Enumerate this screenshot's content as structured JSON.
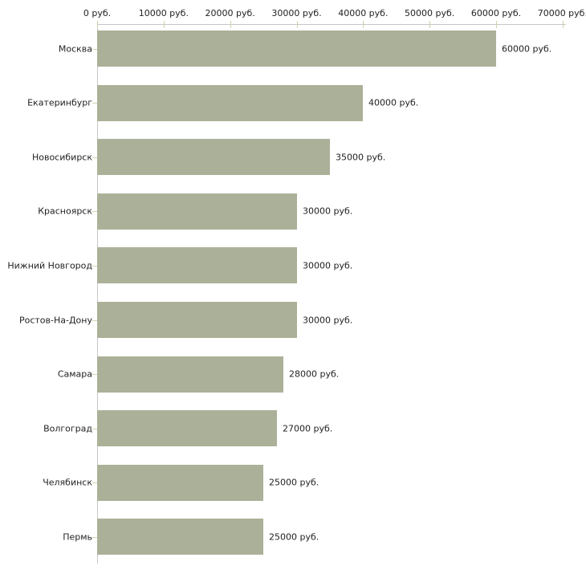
{
  "chart_data": {
    "type": "bar",
    "orientation": "horizontal",
    "categories": [
      "Москва",
      "Екатеринбург",
      "Новосибирск",
      "Красноярск",
      "Нижний Новгород",
      "Ростов-На-Дону",
      "Самара",
      "Волгоград",
      "Челябинск",
      "Пермь"
    ],
    "values": [
      60000,
      40000,
      35000,
      30000,
      30000,
      30000,
      28000,
      27000,
      25000,
      25000
    ],
    "value_labels": [
      "60000 руб.",
      "40000 руб.",
      "35000 руб.",
      "30000 руб.",
      "30000 руб.",
      "30000 руб.",
      "28000 руб.",
      "27000 руб.",
      "25000 руб.",
      "25000 руб."
    ],
    "x_axis": {
      "position": "top",
      "range": [
        0,
        70000
      ],
      "ticks": [
        0,
        10000,
        20000,
        30000,
        40000,
        50000,
        60000,
        70000
      ],
      "tick_labels": [
        "0 руб.",
        "10000 руб.",
        "20000 руб.",
        "30000 руб.",
        "40000 руб.",
        "50000 руб.",
        "60000 руб.",
        "70000 руб."
      ]
    },
    "unit": "руб.",
    "grid": false,
    "legend": null,
    "colors": {
      "bar": "#abb198",
      "axis_line": "#c6c6c6",
      "x_tick": "#cdd0ad",
      "category_tick": "#d9d3ab",
      "text": "#222222",
      "background": "#ffffff"
    }
  }
}
